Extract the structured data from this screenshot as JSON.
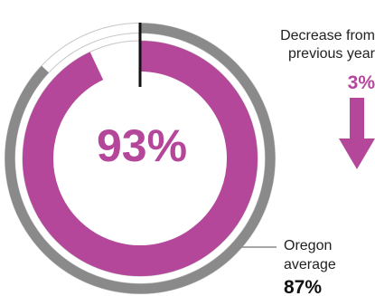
{
  "chart_data": {
    "type": "pie",
    "title": "",
    "center_value_label": "93%",
    "series": [
      {
        "name": "",
        "value": 93
      }
    ],
    "comparison": {
      "label_line1": "Oregon",
      "label_line2": "average",
      "value_label": "87%",
      "value": 87
    },
    "change": {
      "label_line1": "Decrease from",
      "label_line2": "previous year",
      "value_label": "3%",
      "value": 3,
      "direction": "down"
    },
    "colors": {
      "primary": "#b5479b",
      "comparison_ring": "#8a8a8a",
      "track": "#ffffff",
      "track_outline": "#c8c8c8",
      "marker": "#111111"
    }
  }
}
